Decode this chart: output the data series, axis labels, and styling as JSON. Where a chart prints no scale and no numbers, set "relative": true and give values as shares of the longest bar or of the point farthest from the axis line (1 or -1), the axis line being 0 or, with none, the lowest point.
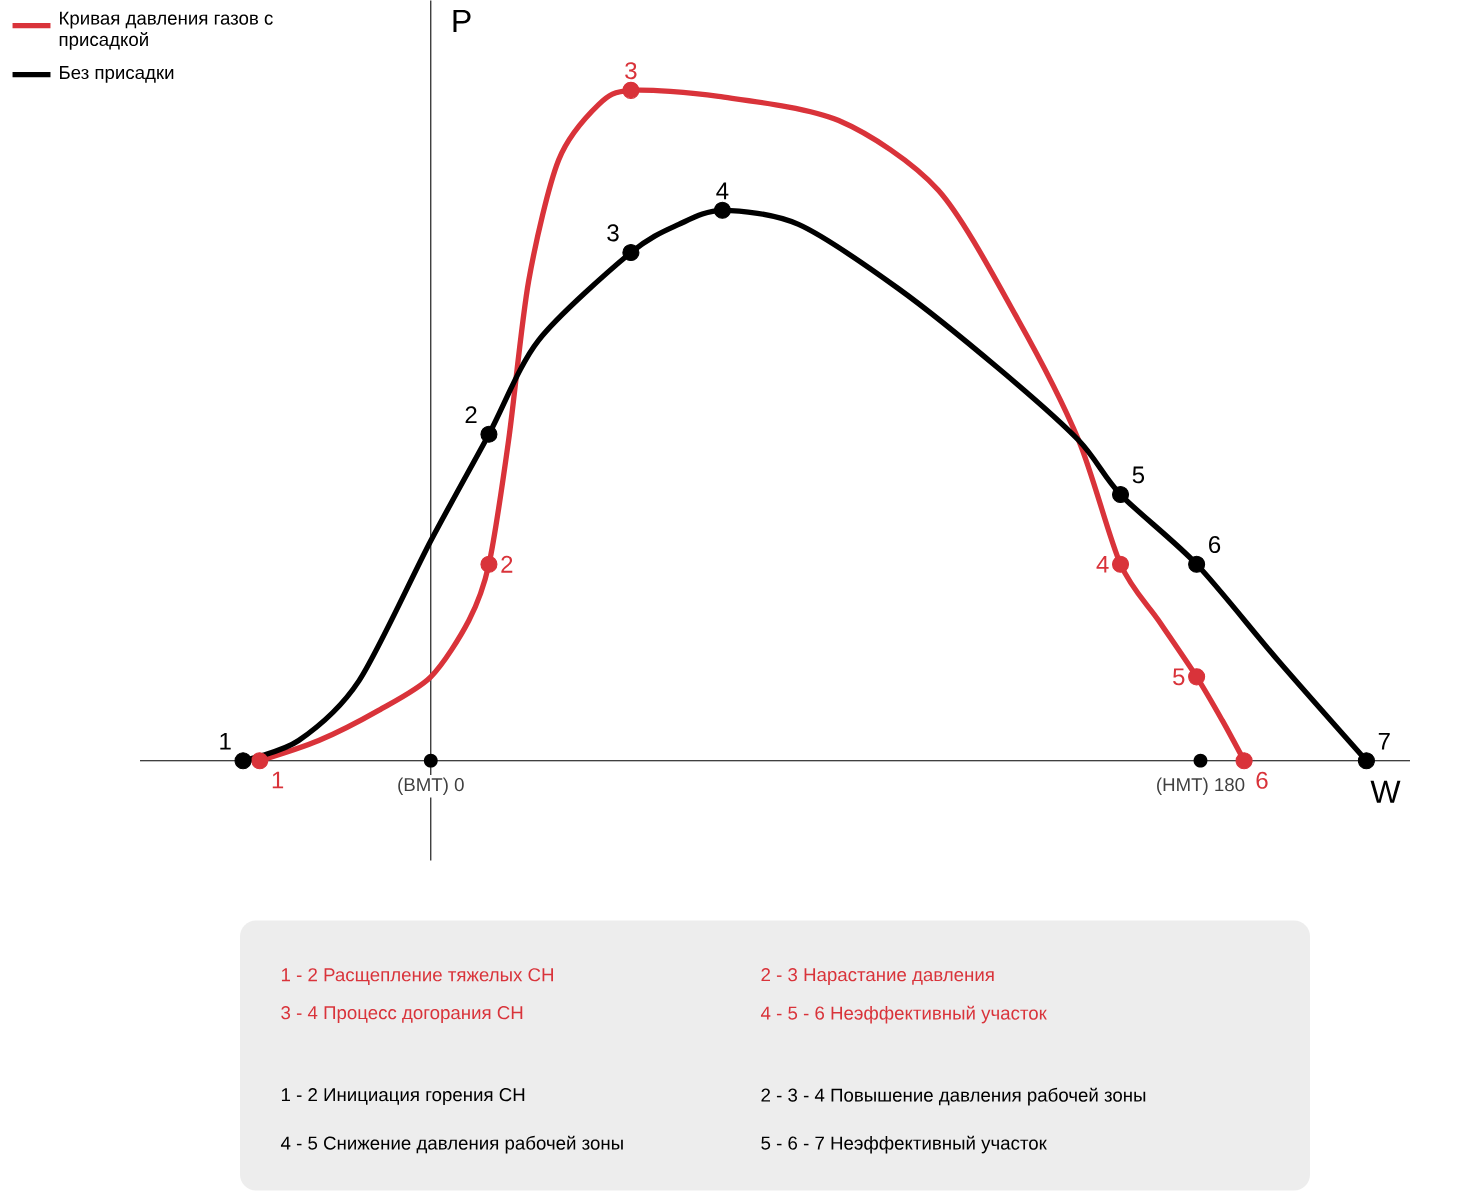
{
  "chart_data": {
    "type": "line",
    "relative": true,
    "xlabel": "W",
    "ylabel": "P",
    "legend": "top left",
    "xlim": [
      -68,
      229
    ],
    "xticks": [
      {
        "value": 0,
        "label": "(ВМТ) 0"
      },
      {
        "value": 180,
        "label": "(НМТ) 180"
      }
    ],
    "series": [
      {
        "name": "Кривая давления газов с присадкой",
        "color": "#d9333a",
        "x": [
          -40,
          -26.2,
          -12.2,
          0,
          8.9,
          13.6,
          18.2,
          22.9,
          29.9,
          39.3,
          46.8,
          67.3,
          95.4,
          118.7,
          137.4,
          151.5,
          161.3,
          170.2,
          179.1,
          185.1,
          190.2
        ],
        "values": [
          0,
          0.03,
          0.075,
          0.125,
          0.209,
          0.293,
          0.478,
          0.716,
          0.896,
          0.979,
          1,
          0.991,
          0.955,
          0.851,
          0.657,
          0.478,
          0.293,
          0.209,
          0.125,
          0.06,
          0
        ]
      },
      {
        "name": "Без присадки",
        "color": "#000000",
        "x": [
          -43.9,
          -30.9,
          -16.8,
          0,
          13.6,
          25.2,
          46.8,
          58,
          68.2,
          86,
          109.4,
          132.8,
          151.5,
          161.3,
          179.1,
          198.2,
          218.8
        ],
        "values": [
          0,
          0.03,
          0.119,
          0.328,
          0.487,
          0.627,
          0.758,
          0.8,
          0.821,
          0.8,
          0.704,
          0.585,
          0.478,
          0.397,
          0.293,
          0.149,
          0
        ]
      },
      {
        "type": "scatter",
        "marker": "circle",
        "color": "#d9333a",
        "x": [
          -40,
          13.6,
          46.8,
          161.3,
          179.1,
          190.2
        ],
        "values": [
          0,
          0.293,
          1,
          0.293,
          0.125,
          0
        ]
      },
      {
        "type": "scatter",
        "marker": "circle",
        "color": "#000000",
        "x": [
          -43.9,
          13.6,
          46.8,
          68.2,
          161.3,
          179.1,
          218.8
        ],
        "values": [
          0,
          0.487,
          0.758,
          0.821,
          0.397,
          0.293,
          0
        ]
      }
    ],
    "annotations": [
      {
        "text": "1",
        "x": -40,
        "y": 0
      },
      {
        "text": "2",
        "x": 13.6,
        "y": 0.293
      },
      {
        "text": "3",
        "x": 46.8,
        "y": 1
      },
      {
        "text": "4",
        "x": 161.3,
        "y": 0.293
      },
      {
        "text": "5",
        "x": 179.1,
        "y": 0.125
      },
      {
        "text": "6",
        "x": 190.2,
        "y": 0
      },
      {
        "text": "1",
        "x": -43.9,
        "y": 0
      },
      {
        "text": "2",
        "x": 13.6,
        "y": 0.487
      },
      {
        "text": "3",
        "x": 46.8,
        "y": 0.758
      },
      {
        "text": "4",
        "x": 68.2,
        "y": 0.821
      },
      {
        "text": "5",
        "x": 161.3,
        "y": 0.397
      },
      {
        "text": "6",
        "x": 179.1,
        "y": 0.293
      },
      {
        "text": "7",
        "x": 218.8,
        "y": 0
      },
      "1 - 2 Расщепление тяжелых СН",
      "2 - 3 Нарастание давления",
      "3 - 4 Процесс догорания СН",
      "4 - 5 - 6 Неэффективный участок",
      "1 - 2 Инициация горения СН",
      "2 - 3 - 4 Повышение давления рабочей зоны",
      "4 - 5 Снижение давления рабочей зоны",
      "5 - 6 - 7 Неэффективный участок"
    ]
  }
}
